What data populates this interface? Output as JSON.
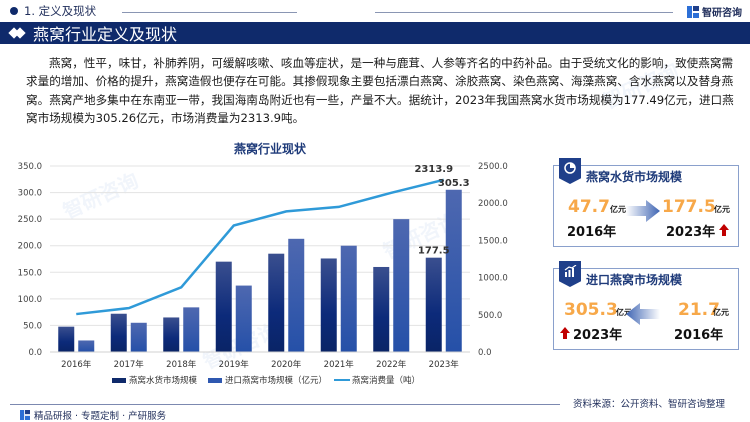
{
  "header": {
    "section_label": "1. 定义及现状",
    "brand_name": "智研咨询",
    "banner_title": "燕窝行业定义及现状"
  },
  "body_text": "燕窝，性平，味甘，补肺养阴，可缓解咳嗽、咳血等症状，是一种与鹿茸、人参等齐名的中药补品。由于受统文化的影响，致使燕窝需求量的增加、价格的提升，燕窝造假也便存在可能。其掺假现象主要包括漂白燕窝、涂胶燕窝、染色燕窝、海藻燕窝、含水燕窝以及替身燕窝。燕窝产地多集中在东南亚一带，我国海南岛附近也有一些，产量不大。据统计，2023年我国燕窝水货市场规模为177.49亿元，进口燕窝市场规模为305.26亿元，市场消费量为2313.9吨。",
  "chart_data": {
    "type": "bar",
    "title": "燕窝行业现状",
    "categories": [
      "2016年",
      "2017年",
      "2018年",
      "2019年",
      "2020年",
      "2021年",
      "2022年",
      "2023年"
    ],
    "series": [
      {
        "name": "燕窝水货市场规模",
        "type": "bar",
        "axis": "left",
        "color": "#0f2a6b",
        "values": [
          47.7,
          72,
          65,
          170,
          185,
          176,
          160,
          177.5
        ]
      },
      {
        "name": "进口燕窝市场规模（亿元）",
        "type": "bar",
        "axis": "left",
        "color": "#2f58b0",
        "values": [
          21.7,
          55,
          84,
          125,
          213,
          200,
          250,
          305.3
        ]
      },
      {
        "name": "燕窝消费量（吨）",
        "type": "line",
        "axis": "right",
        "color": "#2f9ad8",
        "values": [
          510,
          590,
          870,
          1700,
          1890,
          1950,
          2140,
          2313.9
        ]
      }
    ],
    "y_left": {
      "ticks": [
        "0.0",
        "50.0",
        "100.0",
        "150.0",
        "200.0",
        "250.0",
        "300.0",
        "350.0"
      ],
      "range": [
        0,
        350
      ]
    },
    "y_right": {
      "ticks": [
        "0.0",
        "500.0",
        "1000.0",
        "1500.0",
        "2000.0",
        "2500.0"
      ],
      "range": [
        0,
        2500
      ]
    },
    "data_labels": [
      {
        "series": "燕窝水货市场规模",
        "category": "2023年",
        "text": "177.5"
      },
      {
        "series": "进口燕窝市场规模（亿元）",
        "category": "2023年",
        "text": "305.3"
      },
      {
        "series": "燕窝消费量（吨）",
        "category": "2023年",
        "text": "2313.9"
      }
    ],
    "legend_position": "bottom",
    "grid": true
  },
  "cards": [
    {
      "title": "燕窝水货市场规模",
      "icon": "pie-chart-icon",
      "from": {
        "value": "47.7",
        "unit": "亿元",
        "year": "2016年"
      },
      "to": {
        "value": "177.5",
        "unit": "亿元",
        "year": "2023年"
      },
      "arrow": "right"
    },
    {
      "title": "进口燕窝市场规模",
      "icon": "bar-trend-icon",
      "from": {
        "value": "21.7",
        "unit": "亿元",
        "year": "2016年"
      },
      "to": {
        "value": "305.3",
        "unit": "亿元",
        "year": "2023年"
      },
      "arrow": "left"
    }
  ],
  "footer": {
    "left": "精品研报 · 专题定制 · 产研服务",
    "right": "资料来源：公开资料、智研咨询整理"
  }
}
